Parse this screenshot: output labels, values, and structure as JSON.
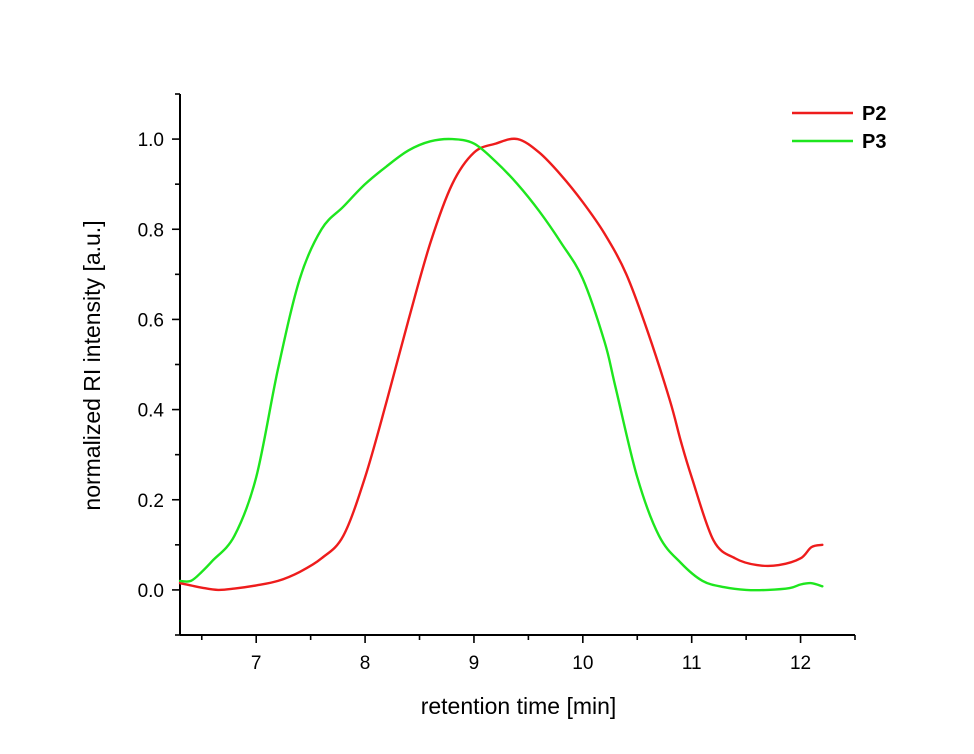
{
  "chart_data": {
    "type": "line",
    "xlabel": "retention time [min]",
    "ylabel": "normalized RI intensity [a.u.]",
    "xlim": [
      6.3,
      12.5
    ],
    "ylim": [
      -0.1,
      1.1
    ],
    "x_ticks": [
      7,
      8,
      9,
      10,
      11,
      12
    ],
    "x_tick_labels": [
      "7",
      "8",
      "9",
      "10",
      "11",
      "12"
    ],
    "y_ticks": [
      0.0,
      0.2,
      0.4,
      0.6,
      0.8,
      1.0
    ],
    "y_tick_labels": [
      "0.0",
      "0.2",
      "0.4",
      "0.6",
      "0.8",
      "1.0"
    ],
    "grid": false,
    "legend_position": "top-right",
    "series": [
      {
        "name": "P2",
        "color": "#ee1c1c",
        "points": [
          [
            6.3,
            0.015
          ],
          [
            6.4,
            0.01
          ],
          [
            6.5,
            0.005
          ],
          [
            6.65,
            0.0
          ],
          [
            6.8,
            0.003
          ],
          [
            7.0,
            0.01
          ],
          [
            7.2,
            0.02
          ],
          [
            7.4,
            0.04
          ],
          [
            7.6,
            0.07
          ],
          [
            7.8,
            0.12
          ],
          [
            8.0,
            0.25
          ],
          [
            8.2,
            0.42
          ],
          [
            8.4,
            0.6
          ],
          [
            8.6,
            0.77
          ],
          [
            8.8,
            0.9
          ],
          [
            9.0,
            0.97
          ],
          [
            9.2,
            0.99
          ],
          [
            9.4,
            1.0
          ],
          [
            9.6,
            0.97
          ],
          [
            9.8,
            0.92
          ],
          [
            10.0,
            0.86
          ],
          [
            10.2,
            0.79
          ],
          [
            10.4,
            0.7
          ],
          [
            10.6,
            0.57
          ],
          [
            10.8,
            0.42
          ],
          [
            10.9,
            0.33
          ],
          [
            11.0,
            0.25
          ],
          [
            11.2,
            0.11
          ],
          [
            11.4,
            0.07
          ],
          [
            11.6,
            0.055
          ],
          [
            11.8,
            0.055
          ],
          [
            12.0,
            0.07
          ],
          [
            12.1,
            0.095
          ],
          [
            12.2,
            0.1
          ]
        ]
      },
      {
        "name": "P3",
        "color": "#1ee61e",
        "points": [
          [
            6.3,
            0.02
          ],
          [
            6.4,
            0.02
          ],
          [
            6.5,
            0.04
          ],
          [
            6.6,
            0.065
          ],
          [
            6.8,
            0.12
          ],
          [
            7.0,
            0.25
          ],
          [
            7.2,
            0.49
          ],
          [
            7.4,
            0.69
          ],
          [
            7.6,
            0.8
          ],
          [
            7.8,
            0.85
          ],
          [
            8.0,
            0.9
          ],
          [
            8.2,
            0.94
          ],
          [
            8.4,
            0.975
          ],
          [
            8.6,
            0.995
          ],
          [
            8.8,
            1.0
          ],
          [
            9.0,
            0.99
          ],
          [
            9.2,
            0.95
          ],
          [
            9.4,
            0.9
          ],
          [
            9.6,
            0.84
          ],
          [
            9.8,
            0.77
          ],
          [
            10.0,
            0.69
          ],
          [
            10.2,
            0.55
          ],
          [
            10.3,
            0.45
          ],
          [
            10.5,
            0.25
          ],
          [
            10.7,
            0.12
          ],
          [
            10.9,
            0.06
          ],
          [
            11.1,
            0.02
          ],
          [
            11.3,
            0.006
          ],
          [
            11.5,
            0.0
          ],
          [
            11.7,
            0.0
          ],
          [
            11.9,
            0.004
          ],
          [
            12.0,
            0.012
          ],
          [
            12.1,
            0.015
          ],
          [
            12.2,
            0.008
          ]
        ]
      }
    ]
  }
}
